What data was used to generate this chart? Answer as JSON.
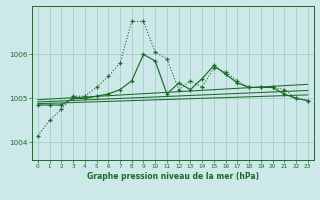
{
  "bg_color": "#cce8e8",
  "grid_color": "#aacccc",
  "line_color": "#1a6b2a",
  "title": "Graphe pression niveau de la mer (hPa)",
  "xlim": [
    -0.5,
    23.5
  ],
  "ylim": [
    1003.6,
    1007.1
  ],
  "yticks": [
    1004,
    1005,
    1006
  ],
  "xticks": [
    0,
    1,
    2,
    3,
    4,
    5,
    6,
    7,
    8,
    9,
    10,
    11,
    12,
    13,
    14,
    15,
    16,
    17,
    18,
    19,
    20,
    21,
    22,
    23
  ],
  "series1_x": [
    0,
    1,
    2,
    3,
    4,
    5,
    6,
    7,
    8,
    9,
    10,
    11,
    12,
    13,
    14,
    15,
    16,
    17,
    18,
    19,
    20,
    21,
    22,
    23
  ],
  "series1_y": [
    1004.15,
    1004.5,
    1004.75,
    1005.05,
    1005.05,
    1005.25,
    1005.5,
    1005.8,
    1006.75,
    1006.75,
    1006.05,
    1005.9,
    1005.2,
    1005.4,
    1005.25,
    1005.7,
    1005.6,
    1005.4,
    1005.25,
    1005.25,
    1005.25,
    1005.2,
    1005.0,
    1004.95
  ],
  "series2_x": [
    0,
    1,
    2,
    3,
    4,
    5,
    6,
    7,
    8,
    9,
    10,
    11,
    12,
    13,
    14,
    15,
    16,
    17,
    18,
    19,
    20,
    21,
    22,
    23
  ],
  "series2_y": [
    1004.85,
    1004.85,
    1004.85,
    1005.0,
    1005.0,
    1005.05,
    1005.1,
    1005.2,
    1005.4,
    1006.0,
    1005.85,
    1005.1,
    1005.35,
    1005.2,
    1005.45,
    1005.75,
    1005.55,
    1005.35,
    1005.25,
    1005.25,
    1005.25,
    1005.1,
    1005.0,
    1004.95
  ],
  "trend1_x": [
    0,
    23
  ],
  "trend1_y": [
    1004.88,
    1005.08
  ],
  "trend2_x": [
    0,
    23
  ],
  "trend2_y": [
    1004.92,
    1005.18
  ],
  "trend3_x": [
    0,
    23
  ],
  "trend3_y": [
    1004.97,
    1005.32
  ]
}
